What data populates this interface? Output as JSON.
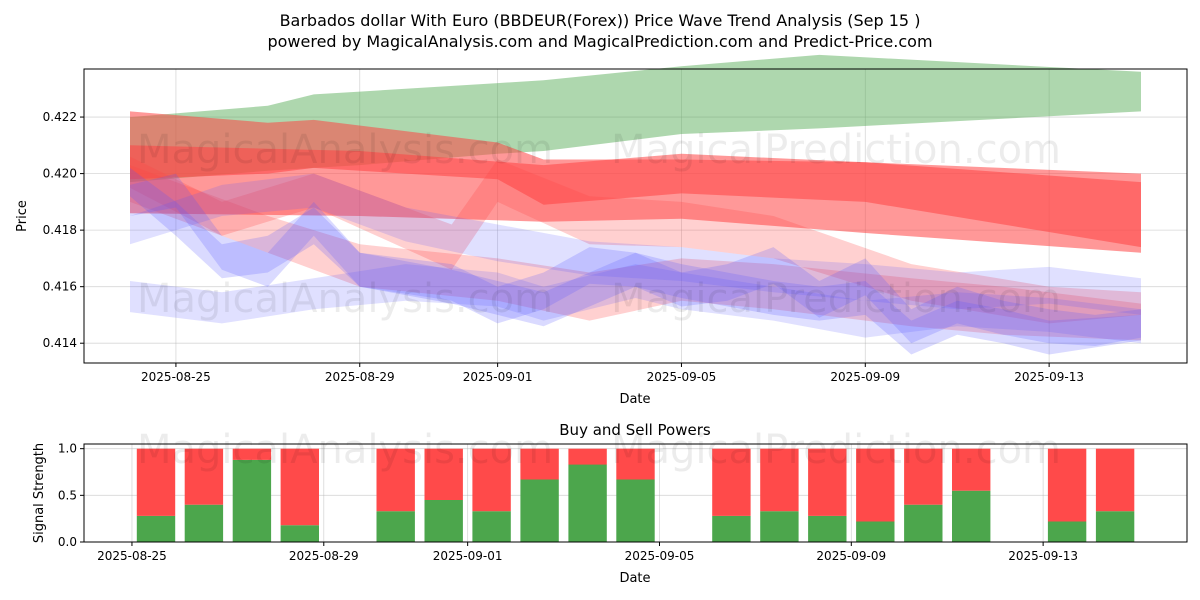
{
  "title_line1": "Barbados dollar With Euro (BBDEUR(Forex)) Price Wave Trend Analysis (Sep 15 )",
  "title_line2": "powered by MagicalAnalysis.com and MagicalPrediction.com and Predict-Price.com",
  "watermarks": [
    "MagicalAnalysis.com",
    "MagicalPrediction.com"
  ],
  "colors": {
    "green": "#4ca64c",
    "red": "#ff4444",
    "blue": "#5555ff",
    "bar_green": "#4ca64c",
    "bar_red": "#ff4a4a"
  },
  "chart_data": [
    {
      "type": "area",
      "xlabel": "Date",
      "ylabel": "Price",
      "x_range": [
        "2025-08-23",
        "2025-09-16"
      ],
      "ylim": [
        0.4133,
        0.4237
      ],
      "x_ticks": [
        "2025-08-25",
        "2025-08-29",
        "2025-09-01",
        "2025-09-05",
        "2025-09-09",
        "2025-09-13"
      ],
      "y_ticks": [
        "0.414",
        "0.416",
        "0.418",
        "0.420",
        "0.422"
      ],
      "grid": true,
      "bands": [
        {
          "color": "green",
          "opacity": 0.45,
          "x": [
            "2025-08-24",
            "2025-08-27",
            "2025-08-28",
            "2025-08-29",
            "2025-09-01",
            "2025-09-02",
            "2025-09-05",
            "2025-09-08",
            "2025-09-15"
          ],
          "upper": [
            0.422,
            0.4224,
            0.4228,
            0.4229,
            0.4232,
            0.4233,
            0.4238,
            0.4242,
            0.4236
          ],
          "lower": [
            0.4197,
            0.4201,
            0.4202,
            0.4203,
            0.4207,
            0.4208,
            0.4214,
            0.4216,
            0.4222
          ]
        },
        {
          "color": "red",
          "opacity": 0.55,
          "x": [
            "2025-08-24",
            "2025-08-27",
            "2025-08-28",
            "2025-09-01",
            "2025-09-02",
            "2025-09-05",
            "2025-09-09",
            "2025-09-15"
          ],
          "upper": [
            0.4222,
            0.4218,
            0.4219,
            0.4211,
            0.4205,
            0.4205,
            0.4204,
            0.4197
          ],
          "lower": [
            0.4198,
            0.42,
            0.4202,
            0.4198,
            0.4189,
            0.4193,
            0.419,
            0.4174
          ]
        },
        {
          "color": "red",
          "opacity": 0.55,
          "x": [
            "2025-08-24",
            "2025-08-29",
            "2025-09-02",
            "2025-09-05",
            "2025-09-09",
            "2025-09-15"
          ],
          "upper": [
            0.421,
            0.4208,
            0.4203,
            0.4207,
            0.4204,
            0.42
          ],
          "lower": [
            0.4186,
            0.4185,
            0.4183,
            0.4184,
            0.4179,
            0.4172
          ]
        },
        {
          "color": "red",
          "opacity": 0.25,
          "x": [
            "2025-08-24",
            "2025-08-26",
            "2025-08-28",
            "2025-08-31",
            "2025-09-01",
            "2025-09-03",
            "2025-09-05",
            "2025-09-07",
            "2025-09-10",
            "2025-09-13",
            "2025-09-15"
          ],
          "upper": [
            0.4206,
            0.419,
            0.42,
            0.4182,
            0.4205,
            0.4192,
            0.419,
            0.4185,
            0.4168,
            0.416,
            0.4158
          ],
          "lower": [
            0.4195,
            0.4178,
            0.4188,
            0.4166,
            0.419,
            0.4175,
            0.4174,
            0.417,
            0.4155,
            0.4147,
            0.415
          ]
        },
        {
          "color": "red",
          "opacity": 0.25,
          "x": [
            "2025-08-24",
            "2025-08-27",
            "2025-08-29",
            "2025-09-01",
            "2025-09-03",
            "2025-09-05",
            "2025-09-07",
            "2025-09-10",
            "2025-09-12",
            "2025-09-15"
          ],
          "upper": [
            0.4203,
            0.4185,
            0.4175,
            0.417,
            0.4165,
            0.417,
            0.4168,
            0.4163,
            0.416,
            0.4154
          ],
          "lower": [
            0.419,
            0.4172,
            0.416,
            0.4155,
            0.4148,
            0.4155,
            0.4152,
            0.4146,
            0.4143,
            0.4141
          ]
        },
        {
          "color": "blue",
          "opacity": 0.22,
          "x": [
            "2025-08-24",
            "2025-08-25",
            "2025-08-26",
            "2025-08-27",
            "2025-08-28",
            "2025-08-29",
            "2025-08-31",
            "2025-09-01",
            "2025-09-02",
            "2025-09-03",
            "2025-09-04",
            "2025-09-05",
            "2025-09-06",
            "2025-09-07",
            "2025-09-08",
            "2025-09-09",
            "2025-09-10",
            "2025-09-11",
            "2025-09-12",
            "2025-09-13",
            "2025-09-14",
            "2025-09-15"
          ],
          "upper": [
            0.4202,
            0.419,
            0.4175,
            0.4178,
            0.4188,
            0.4172,
            0.4168,
            0.416,
            0.4165,
            0.4174,
            0.4172,
            0.4165,
            0.4168,
            0.4174,
            0.4162,
            0.417,
            0.4152,
            0.416,
            0.4155,
            0.4152,
            0.415,
            0.4152
          ],
          "lower": [
            0.4192,
            0.4178,
            0.4163,
            0.4165,
            0.4175,
            0.416,
            0.4155,
            0.4147,
            0.4152,
            0.4161,
            0.416,
            0.4153,
            0.4155,
            0.4161,
            0.4149,
            0.4157,
            0.414,
            0.4147,
            0.4143,
            0.414,
            0.4139,
            0.4142
          ]
        },
        {
          "color": "blue",
          "opacity": 0.22,
          "x": [
            "2025-08-24",
            "2025-08-25",
            "2025-08-26",
            "2025-08-27",
            "2025-08-28",
            "2025-08-29",
            "2025-08-31",
            "2025-09-01",
            "2025-09-02",
            "2025-09-04",
            "2025-09-05",
            "2025-09-07",
            "2025-09-08",
            "2025-09-09",
            "2025-09-10",
            "2025-09-11",
            "2025-09-12",
            "2025-09-13",
            "2025-09-15"
          ],
          "upper": [
            0.4196,
            0.42,
            0.4178,
            0.4172,
            0.419,
            0.4172,
            0.4166,
            0.4162,
            0.4158,
            0.4172,
            0.4168,
            0.4162,
            0.416,
            0.4162,
            0.4148,
            0.4155,
            0.4152,
            0.4148,
            0.415
          ],
          "lower": [
            0.4185,
            0.4188,
            0.4166,
            0.416,
            0.4178,
            0.416,
            0.4154,
            0.415,
            0.4146,
            0.416,
            0.4156,
            0.415,
            0.4148,
            0.415,
            0.4136,
            0.4143,
            0.414,
            0.4136,
            0.4141
          ]
        },
        {
          "color": "blue",
          "opacity": 0.18,
          "x": [
            "2025-08-24",
            "2025-08-26",
            "2025-08-28",
            "2025-08-30",
            "2025-09-01",
            "2025-09-03",
            "2025-09-05",
            "2025-09-07",
            "2025-09-09",
            "2025-09-11",
            "2025-09-13",
            "2025-09-15"
          ],
          "upper": [
            0.4185,
            0.4196,
            0.42,
            0.4188,
            0.4182,
            0.4176,
            0.4174,
            0.417,
            0.4168,
            0.4165,
            0.4167,
            0.4163
          ],
          "lower": [
            0.4175,
            0.4185,
            0.4188,
            0.4176,
            0.4169,
            0.4164,
            0.4162,
            0.4158,
            0.4155,
            0.4152,
            0.4154,
            0.415
          ]
        },
        {
          "color": "blue",
          "opacity": 0.18,
          "x": [
            "2025-08-24",
            "2025-08-26",
            "2025-08-28",
            "2025-08-30",
            "2025-09-01",
            "2025-09-02",
            "2025-09-04",
            "2025-09-05",
            "2025-09-07",
            "2025-09-09",
            "2025-09-11",
            "2025-09-13",
            "2025-09-15"
          ],
          "upper": [
            0.4162,
            0.4158,
            0.4163,
            0.4168,
            0.4165,
            0.416,
            0.4168,
            0.4165,
            0.416,
            0.4155,
            0.4158,
            0.4156,
            0.4152
          ],
          "lower": [
            0.4151,
            0.4147,
            0.4152,
            0.4155,
            0.4153,
            0.4148,
            0.4156,
            0.4152,
            0.4148,
            0.4142,
            0.4146,
            0.4144,
            0.414
          ]
        }
      ]
    },
    {
      "type": "bar",
      "title": "Buy and Sell Powers",
      "xlabel": "Date",
      "ylabel": "Signal Strength",
      "x_range": [
        "2025-08-24",
        "2025-09-16"
      ],
      "ylim": [
        0,
        1.05
      ],
      "x_ticks": [
        "2025-08-25",
        "2025-08-29",
        "2025-09-01",
        "2025-09-05",
        "2025-09-09",
        "2025-09-13"
      ],
      "y_ticks": [
        "0.0",
        "0.5",
        "1.0"
      ],
      "grid": true,
      "dates": [
        "2025-08-26",
        "2025-08-27",
        "2025-08-28",
        "2025-08-29",
        "2025-08-31",
        "2025-09-01",
        "2025-09-02",
        "2025-09-03",
        "2025-09-04",
        "2025-09-05",
        "2025-09-07",
        "2025-09-08",
        "2025-09-09",
        "2025-09-10",
        "2025-09-11",
        "2025-09-12",
        "2025-09-14",
        "2025-09-15"
      ],
      "buy": [
        0.28,
        0.4,
        0.88,
        0.18,
        0.33,
        0.45,
        0.33,
        0.67,
        0.83,
        0.67,
        0.28,
        0.33,
        0.28,
        0.22,
        0.4,
        0.55,
        0.22,
        0.33
      ],
      "sell": [
        0.72,
        0.6,
        0.12,
        0.82,
        0.67,
        0.55,
        0.67,
        0.33,
        0.17,
        0.33,
        0.72,
        0.67,
        0.72,
        0.78,
        0.6,
        0.45,
        0.78,
        0.67
      ]
    }
  ]
}
